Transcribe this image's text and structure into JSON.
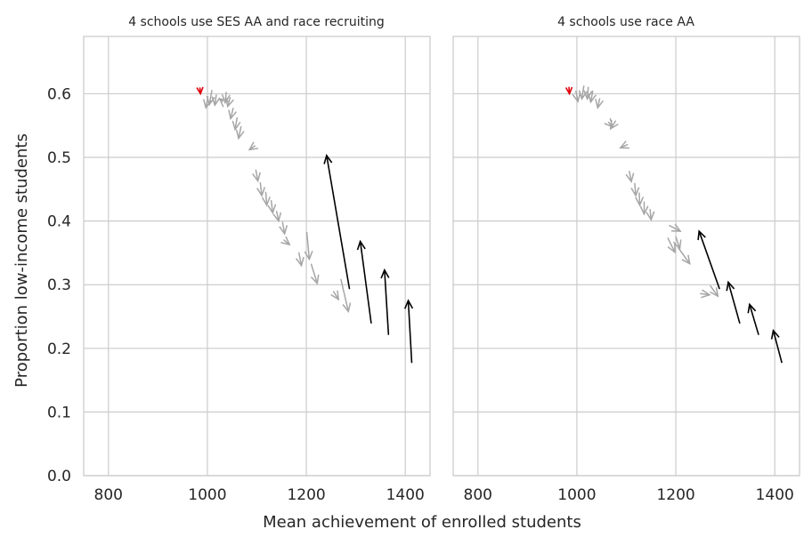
{
  "figure": {
    "ylabel": "Proportion low-income students",
    "xlabel": "Mean achievement of enrolled students"
  },
  "colors": {
    "arrow_black": "#000000",
    "arrow_gray": "#a6a6a6",
    "arrow_red": "#e0000a",
    "grid": "#cccccc"
  },
  "chart_data": [
    {
      "type": "quiver",
      "title": "4 schools use SES AA and race recruiting",
      "xlim": [
        750,
        1450
      ],
      "ylim": [
        0,
        0.69
      ],
      "xticks": [
        800,
        1000,
        1200,
        1400
      ],
      "yticks": [
        0.0,
        0.1,
        0.2,
        0.3,
        0.4,
        0.5,
        0.6
      ],
      "grid": true,
      "black_arrows": [
        {
          "from": [
            1287,
            0.294
          ],
          "to": [
            1241,
            0.503
          ]
        },
        {
          "from": [
            1331,
            0.24
          ],
          "to": [
            1309,
            0.368
          ]
        },
        {
          "from": [
            1366,
            0.222
          ],
          "to": [
            1358,
            0.323
          ]
        },
        {
          "from": [
            1413,
            0.178
          ],
          "to": [
            1406,
            0.275
          ]
        }
      ],
      "gray_arrows": [
        {
          "from": [
            1001,
            0.595
          ],
          "to": [
            997,
            0.578
          ]
        },
        {
          "from": [
            1009,
            0.605
          ],
          "to": [
            1004,
            0.583
          ]
        },
        {
          "from": [
            1018,
            0.598
          ],
          "to": [
            1015,
            0.582
          ]
        },
        {
          "from": [
            1031,
            0.588
          ],
          "to": [
            1025,
            0.592
          ]
        },
        {
          "from": [
            1038,
            0.602
          ],
          "to": [
            1036,
            0.586
          ]
        },
        {
          "from": [
            1046,
            0.594
          ],
          "to": [
            1041,
            0.58
          ]
        },
        {
          "from": [
            1052,
            0.577
          ],
          "to": [
            1047,
            0.561
          ]
        },
        {
          "from": [
            1060,
            0.562
          ],
          "to": [
            1056,
            0.544
          ]
        },
        {
          "from": [
            1068,
            0.548
          ],
          "to": [
            1063,
            0.53
          ]
        },
        {
          "from": [
            1096,
            0.518
          ],
          "to": [
            1085,
            0.512
          ]
        },
        {
          "from": [
            1098,
            0.48
          ],
          "to": [
            1102,
            0.463
          ]
        },
        {
          "from": [
            1107,
            0.46
          ],
          "to": [
            1110,
            0.44
          ]
        },
        {
          "from": [
            1118,
            0.445
          ],
          "to": [
            1120,
            0.425
          ]
        },
        {
          "from": [
            1129,
            0.432
          ],
          "to": [
            1132,
            0.413
          ]
        },
        {
          "from": [
            1140,
            0.415
          ],
          "to": [
            1144,
            0.4
          ]
        },
        {
          "from": [
            1152,
            0.398
          ],
          "to": [
            1156,
            0.38
          ]
        },
        {
          "from": [
            1155,
            0.37
          ],
          "to": [
            1166,
            0.363
          ]
        },
        {
          "from": [
            1185,
            0.35
          ],
          "to": [
            1190,
            0.33
          ]
        },
        {
          "from": [
            1201,
            0.382
          ],
          "to": [
            1206,
            0.34
          ]
        },
        {
          "from": [
            1210,
            0.332
          ],
          "to": [
            1222,
            0.302
          ]
        },
        {
          "from": [
            1255,
            0.289
          ],
          "to": [
            1265,
            0.277
          ]
        },
        {
          "from": [
            1270,
            0.308
          ],
          "to": [
            1285,
            0.258
          ]
        }
      ],
      "red_arrows": [
        {
          "from": [
            985,
            0.609
          ],
          "to": [
            986,
            0.6
          ]
        }
      ]
    },
    {
      "type": "quiver",
      "title": "4 schools use race AA",
      "xlim": [
        750,
        1450
      ],
      "ylim": [
        0,
        0.69
      ],
      "xticks": [
        800,
        1000,
        1200,
        1400
      ],
      "yticks": [
        0.0,
        0.1,
        0.2,
        0.3,
        0.4,
        0.5,
        0.6
      ],
      "grid": true,
      "black_arrows": [
        {
          "from": [
            1288,
            0.294
          ],
          "to": [
            1247,
            0.384
          ]
        },
        {
          "from": [
            1329,
            0.24
          ],
          "to": [
            1306,
            0.304
          ]
        },
        {
          "from": [
            1367,
            0.222
          ],
          "to": [
            1349,
            0.269
          ]
        },
        {
          "from": [
            1414,
            0.178
          ],
          "to": [
            1397,
            0.228
          ]
        }
      ],
      "gray_arrows": [
        {
          "from": [
            998,
            0.604
          ],
          "to": [
            1002,
            0.588
          ]
        },
        {
          "from": [
            1014,
            0.612
          ],
          "to": [
            1010,
            0.592
          ]
        },
        {
          "from": [
            1023,
            0.61
          ],
          "to": [
            1021,
            0.592
          ]
        },
        {
          "from": [
            1032,
            0.604
          ],
          "to": [
            1028,
            0.587
          ]
        },
        {
          "from": [
            1046,
            0.592
          ],
          "to": [
            1042,
            0.578
          ]
        },
        {
          "from": [
            1064,
            0.555
          ],
          "to": [
            1072,
            0.548
          ]
        },
        {
          "from": [
            1078,
            0.557
          ],
          "to": [
            1068,
            0.545
          ]
        },
        {
          "from": [
            1102,
            0.52
          ],
          "to": [
            1088,
            0.515
          ]
        },
        {
          "from": [
            1106,
            0.478
          ],
          "to": [
            1110,
            0.462
          ]
        },
        {
          "from": [
            1117,
            0.459
          ],
          "to": [
            1119,
            0.44
          ]
        },
        {
          "from": [
            1126,
            0.444
          ],
          "to": [
            1127,
            0.425
          ]
        },
        {
          "from": [
            1136,
            0.43
          ],
          "to": [
            1136,
            0.411
          ]
        },
        {
          "from": [
            1148,
            0.418
          ],
          "to": [
            1150,
            0.402
          ]
        },
        {
          "from": [
            1187,
            0.393
          ],
          "to": [
            1209,
            0.384
          ]
        },
        {
          "from": [
            1200,
            0.375
          ],
          "to": [
            1208,
            0.357
          ]
        },
        {
          "from": [
            1184,
            0.373
          ],
          "to": [
            1198,
            0.351
          ]
        },
        {
          "from": [
            1205,
            0.358
          ],
          "to": [
            1228,
            0.333
          ]
        },
        {
          "from": [
            1250,
            0.286
          ],
          "to": [
            1268,
            0.284
          ]
        },
        {
          "from": [
            1270,
            0.298
          ],
          "to": [
            1285,
            0.282
          ]
        }
      ],
      "red_arrows": [
        {
          "from": [
            984,
            0.61
          ],
          "to": [
            985,
            0.6
          ]
        }
      ]
    }
  ]
}
